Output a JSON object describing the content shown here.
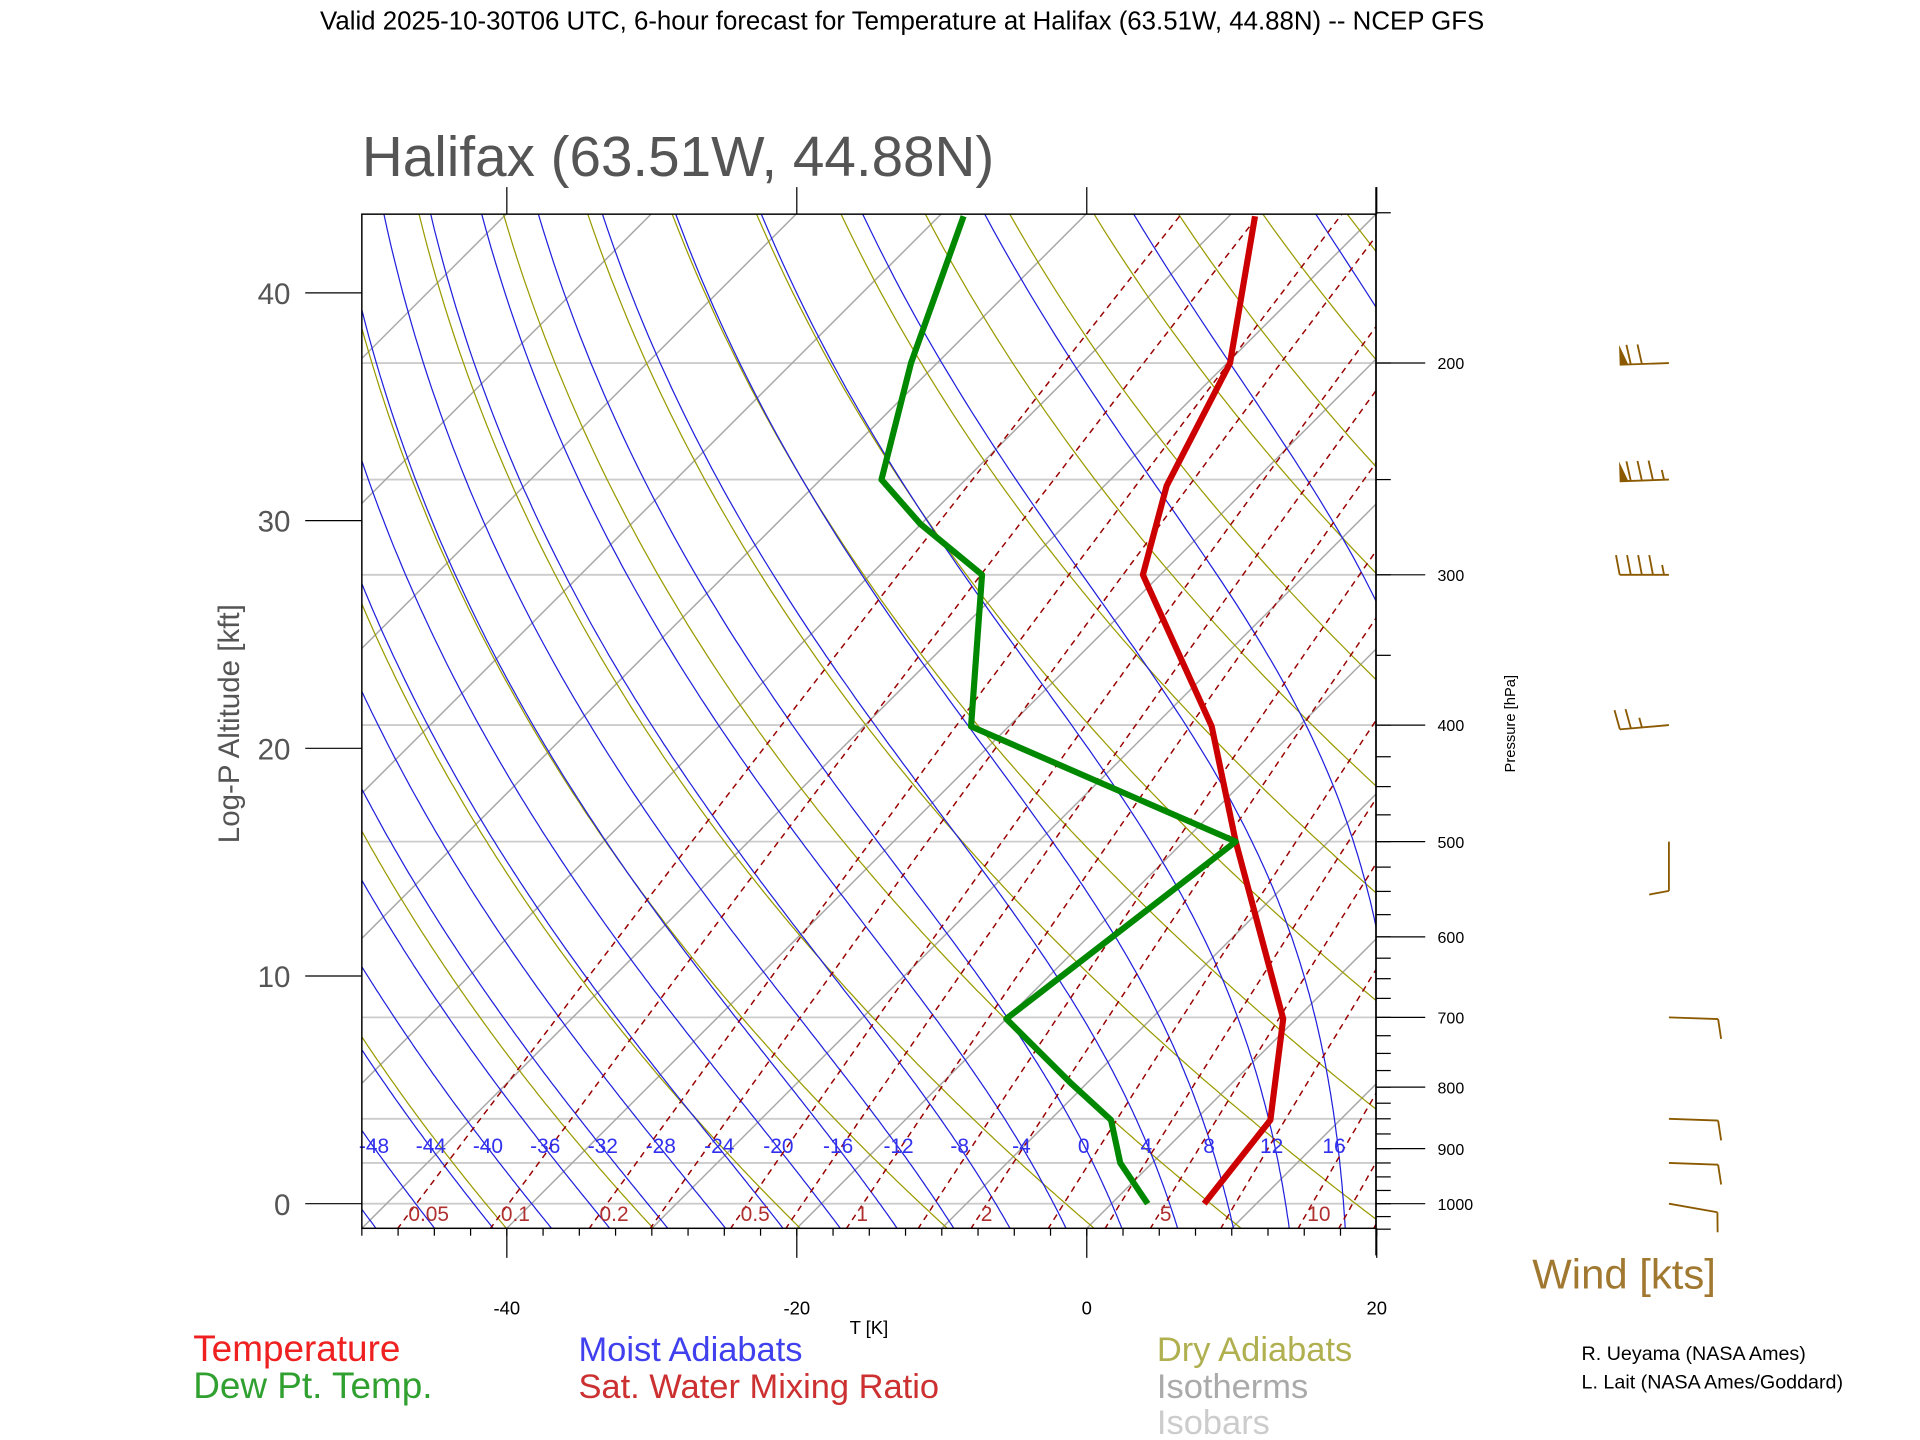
{
  "header": {
    "suptitle": "Valid 2025-10-30T06 UTC, 6-hour forecast for Temperature at Halifax (63.51W, 44.88N) -- NCEP GFS"
  },
  "chart_data": {
    "type": "line",
    "subtype": "skew-T log-P diagram",
    "title": "Halifax (63.51W, 44.88N)",
    "xlabel": "T [K]",
    "ylabel": "Log-P Altitude [kft]",
    "y2label": "Pressure [hPa]",
    "xlim": [
      -50,
      20
    ],
    "plim_hpa": [
      1048,
      150
    ],
    "x_ticks": [
      "-40",
      "-20",
      "0",
      "20"
    ],
    "x_tick_values": [
      -40,
      -20,
      0,
      20
    ],
    "y_ticks": [
      "0",
      "10",
      "20",
      "30",
      "40"
    ],
    "y_tick_values": [
      0,
      10,
      20,
      30,
      40
    ],
    "pressure_ticks": [
      "1000",
      "900",
      "800",
      "700",
      "600",
      "500",
      "400",
      "300",
      "200"
    ],
    "pressure_tick_values": [
      1000,
      900,
      800,
      700,
      600,
      500,
      400,
      300,
      200
    ],
    "series": [
      {
        "name": "Temperature",
        "color": "#cc0000",
        "pressure_hpa": [
          1000,
          852,
          702,
          500,
          401,
          300,
          253,
          200,
          151
        ],
        "temp_c": [
          6.4,
          5.2,
          -0.9,
          -16.4,
          -26.0,
          -41.2,
          -45.7,
          -49.8,
          -58.2
        ]
      },
      {
        "name": "Dew Pt. Temp.",
        "color": "#008800",
        "pressure_hpa": [
          1000,
          925,
          852,
          794,
          702,
          500,
          401,
          300,
          272,
          250,
          200,
          151
        ],
        "temp_c": [
          2.5,
          -2.2,
          -5.8,
          -11.1,
          -20.0,
          -16.4,
          -42.6,
          -52.3,
          -60.1,
          -65.8,
          -71.8,
          -78.3
        ]
      }
    ],
    "moist_adiabat_labels": [
      "-48",
      "-44",
      "-40",
      "-36",
      "-32",
      "-28",
      "-24",
      "-20",
      "-16",
      "-12",
      "-8",
      "-4",
      "0",
      "4",
      "8",
      "12",
      "16"
    ],
    "moist_adiabat_values": [
      -48,
      -44,
      -40,
      -36,
      -32,
      -28,
      -24,
      -20,
      -16,
      -12,
      -8,
      -4,
      0,
      4,
      8,
      12,
      16
    ],
    "mixing_ratio_labels": [
      "0.05",
      "0.1",
      "0.2",
      "0.5",
      "1",
      "2",
      "5",
      "10"
    ],
    "mixing_ratio_values": [
      0.05,
      0.1,
      0.2,
      0.5,
      1,
      2,
      5,
      10
    ],
    "mixing_ratio_lines": [
      0.05,
      0.1,
      0.2,
      0.3,
      0.5,
      0.7,
      1,
      1.5,
      2,
      3,
      4,
      5,
      7,
      10,
      12,
      14,
      16,
      20
    ],
    "isobars_hpa": [
      1000,
      925,
      850,
      700,
      500,
      400,
      300,
      250,
      200
    ],
    "wind": {
      "label": "Wind [kts]",
      "color": "#8b5a00",
      "barbs": [
        {
          "pressure_hpa": 200,
          "direction_deg": 268,
          "speed_kt": 70
        },
        {
          "pressure_hpa": 250,
          "direction_deg": 268,
          "speed_kt": 85
        },
        {
          "pressure_hpa": 300,
          "direction_deg": 270,
          "speed_kt": 45
        },
        {
          "pressure_hpa": 400,
          "direction_deg": 265,
          "speed_kt": 25
        },
        {
          "pressure_hpa": 500,
          "direction_deg": 180,
          "speed_kt": 10
        },
        {
          "pressure_hpa": 700,
          "direction_deg": 92,
          "speed_kt": 10
        },
        {
          "pressure_hpa": 850,
          "direction_deg": 92,
          "speed_kt": 10
        },
        {
          "pressure_hpa": 925,
          "direction_deg": 92,
          "speed_kt": 10
        },
        {
          "pressure_hpa": 1000,
          "direction_deg": 100,
          "speed_kt": 10
        }
      ]
    },
    "legend": {
      "temperature": "Temperature",
      "dewpoint": "Dew Pt. Temp.",
      "moist": "Moist Adiabats",
      "mixing": "Sat. Water Mixing Ratio",
      "dry": "Dry Adiabats",
      "isotherms": "Isotherms",
      "isobars": "Isobars"
    },
    "colors": {
      "isotherm": "#a8a8a8",
      "isobar": "#cccccc",
      "dry": "#9a9a00",
      "moist": "#2020dd",
      "mixing": "#990000"
    }
  },
  "credits": [
    "R. Ueyama (NASA Ames)",
    "L. Lait (NASA Ames/Goddard)"
  ]
}
